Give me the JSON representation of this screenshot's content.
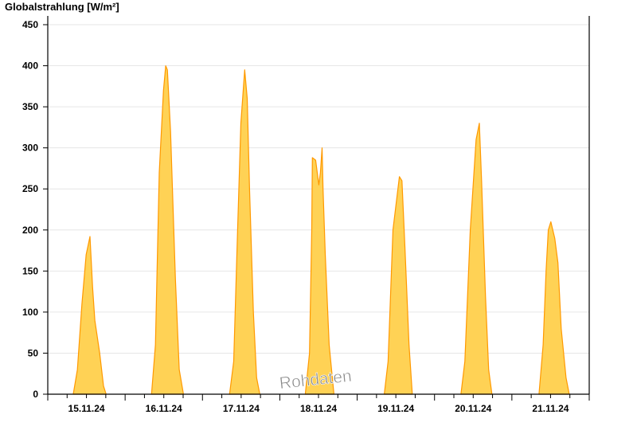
{
  "chart_data": {
    "type": "area",
    "title": "Globalstrahlung [W/m²]",
    "xlabel": "",
    "ylabel": "",
    "ylim": [
      0,
      450
    ],
    "yticks": [
      0,
      50,
      100,
      150,
      200,
      250,
      300,
      350,
      400,
      450
    ],
    "grid": true,
    "watermark": "Rohdaten",
    "colors": {
      "fill": "#ffd255",
      "line": "#ff9900",
      "grid": "#e6e6e6"
    },
    "x_ticks": [
      "15.11.24",
      "16.11.24",
      "17.11.24",
      "18.11.24",
      "19.11.24",
      "20.11.24",
      "21.11.24"
    ],
    "days": [
      {
        "date": "15.11.24",
        "points": [
          [
            7.9,
            0
          ],
          [
            9.2,
            30
          ],
          [
            10.6,
            110
          ],
          [
            11.9,
            170
          ],
          [
            13.1,
            192
          ],
          [
            13.9,
            130
          ],
          [
            14.6,
            90
          ],
          [
            16.1,
            50
          ],
          [
            17.3,
            10
          ],
          [
            18.1,
            0
          ]
        ]
      },
      {
        "date": "16.11.24",
        "points": [
          [
            8.2,
            0
          ],
          [
            9.4,
            60
          ],
          [
            10.6,
            270
          ],
          [
            11.9,
            370
          ],
          [
            12.6,
            400
          ],
          [
            13.1,
            395
          ],
          [
            14.1,
            320
          ],
          [
            15.6,
            140
          ],
          [
            16.8,
            30
          ],
          [
            18.1,
            0
          ]
        ]
      },
      {
        "date": "17.11.24",
        "points": [
          [
            8.4,
            0
          ],
          [
            9.7,
            40
          ],
          [
            10.9,
            200
          ],
          [
            11.9,
            330
          ],
          [
            13.1,
            395
          ],
          [
            13.9,
            360
          ],
          [
            14.6,
            250
          ],
          [
            15.8,
            100
          ],
          [
            16.8,
            20
          ],
          [
            17.8,
            0
          ]
        ]
      },
      {
        "date": "18.11.24",
        "points": [
          [
            7.9,
            0
          ],
          [
            9.2,
            50
          ],
          [
            9.9,
            200
          ],
          [
            10.1,
            288
          ],
          [
            11.1,
            285
          ],
          [
            12.1,
            255
          ],
          [
            12.6,
            270
          ],
          [
            13.1,
            300
          ],
          [
            13.4,
            250
          ],
          [
            14.1,
            170
          ],
          [
            15.3,
            60
          ],
          [
            16.8,
            0
          ]
        ]
      },
      {
        "date": "19.11.24",
        "points": [
          [
            8.4,
            0
          ],
          [
            9.6,
            40
          ],
          [
            11.1,
            200
          ],
          [
            13.1,
            265
          ],
          [
            13.9,
            260
          ],
          [
            14.8,
            180
          ],
          [
            16.1,
            60
          ],
          [
            17.1,
            0
          ]
        ]
      },
      {
        "date": "20.11.24",
        "points": [
          [
            8.2,
            0
          ],
          [
            9.4,
            40
          ],
          [
            11.1,
            200
          ],
          [
            12.9,
            310
          ],
          [
            13.9,
            330
          ],
          [
            14.6,
            260
          ],
          [
            15.8,
            120
          ],
          [
            16.8,
            30
          ],
          [
            17.8,
            0
          ]
        ]
      },
      {
        "date": "21.11.24",
        "points": [
          [
            8.4,
            0
          ],
          [
            9.7,
            60
          ],
          [
            10.6,
            150
          ],
          [
            11.3,
            200
          ],
          [
            12.1,
            210
          ],
          [
            13.3,
            190
          ],
          [
            14.3,
            160
          ],
          [
            15.3,
            80
          ],
          [
            16.8,
            20
          ],
          [
            17.8,
            0
          ]
        ]
      }
    ]
  }
}
